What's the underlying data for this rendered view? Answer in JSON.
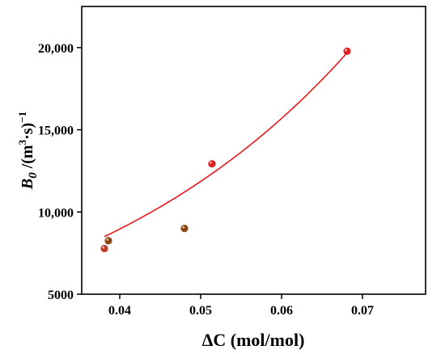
{
  "chart_data": {
    "type": "scatter",
    "xlabel": "ΔC (mol/mol)",
    "ylabel": {
      "base": "B",
      "sub": "0",
      "unit_prefix": " /(m",
      "unit_sup": "3",
      "unit_mid": "·s)",
      "unit_exp": "−1"
    },
    "xlim": [
      0.0353,
      0.0778
    ],
    "ylim": [
      5000,
      22500
    ],
    "x_ticks": [
      {
        "value": 0.04,
        "label": "0.04"
      },
      {
        "value": 0.05,
        "label": "0.05"
      },
      {
        "value": 0.06,
        "label": "0.06"
      },
      {
        "value": 0.07,
        "label": "0.07"
      }
    ],
    "y_ticks": [
      {
        "value": 5000,
        "label": "5000"
      },
      {
        "value": 10000,
        "label": "10,000"
      },
      {
        "value": 15000,
        "label": "15,000"
      },
      {
        "value": 20000,
        "label": "20,000"
      }
    ],
    "points": [
      {
        "x": 0.0381,
        "y": 7780,
        "color": "#c0392b"
      },
      {
        "x": 0.0386,
        "y": 8250,
        "color": "#8b4513"
      },
      {
        "x": 0.048,
        "y": 9000,
        "color": "#8b4513"
      },
      {
        "x": 0.0514,
        "y": 12930,
        "color": "#e0201e"
      },
      {
        "x": 0.0681,
        "y": 19780,
        "color": "#e0201e"
      }
    ],
    "fit": {
      "type": "exponential",
      "a": 2924,
      "b": 28.0,
      "x_range": [
        0.0381,
        0.0681
      ],
      "color": "#e8191b"
    },
    "grid": false,
    "legend": "none"
  }
}
